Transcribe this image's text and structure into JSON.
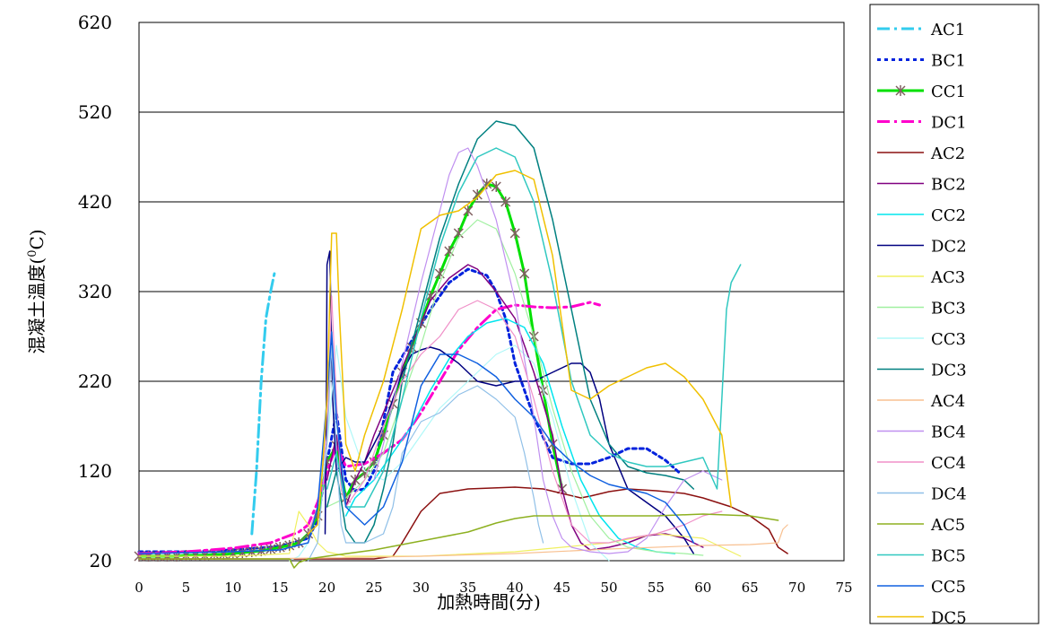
{
  "chart_data": {
    "type": "line",
    "xlabel": "加熱時間(分)",
    "ylabel_main": "混凝土溫度(",
    "ylabel_sup": "0",
    "ylabel_tail": "C)",
    "xlim": [
      0,
      75
    ],
    "ylim": [
      20,
      620
    ],
    "xticks": [
      "0",
      "5",
      "10",
      "15",
      "20",
      "25",
      "30",
      "35",
      "40",
      "45",
      "50",
      "55",
      "60",
      "65",
      "70",
      "75"
    ],
    "yticks": [
      "20",
      "120",
      "220",
      "320",
      "420",
      "520",
      "620"
    ],
    "grid": "horizontal",
    "legend_position": "right",
    "series": [
      {
        "name": "AC1",
        "color": "#33CCEE",
        "style": "dashdot",
        "width": 3,
        "x": [
          12,
          12.5,
          13,
          13.5,
          14,
          14.4
        ],
        "y": [
          50,
          120,
          220,
          290,
          320,
          340
        ]
      },
      {
        "name": "BC1",
        "color": "#0022DD",
        "style": "dot",
        "width": 3,
        "x": [
          0,
          5,
          10,
          15,
          18,
          19,
          20,
          21,
          22,
          23,
          24,
          25,
          27,
          29,
          31,
          33,
          35,
          37,
          38,
          39,
          40,
          42,
          44,
          46,
          48,
          50,
          52,
          54,
          56,
          57.5
        ],
        "y": [
          30,
          30,
          32,
          36,
          45,
          65,
          130,
          185,
          110,
          98,
          100,
          120,
          230,
          265,
          300,
          330,
          345,
          338,
          320,
          290,
          240,
          180,
          135,
          128,
          128,
          135,
          145,
          145,
          132,
          118
        ]
      },
      {
        "name": "CC1",
        "color": "#00E000",
        "style": "solid",
        "width": 3,
        "markers": true,
        "marker_color": "#806060",
        "x": [
          0,
          1,
          2,
          3,
          4,
          5,
          6,
          7,
          8,
          9,
          10,
          11,
          12,
          13,
          14,
          15,
          16,
          17,
          18,
          19,
          20,
          21,
          22,
          23,
          24,
          25,
          26,
          27,
          28,
          29,
          30,
          31,
          32,
          33,
          34,
          35,
          36,
          37,
          38,
          39,
          40,
          41,
          42,
          43,
          44,
          45
        ],
        "y": [
          25,
          25,
          25,
          25,
          25,
          26,
          26,
          26,
          27,
          27,
          28,
          29,
          30,
          31,
          33,
          35,
          37,
          40,
          50,
          70,
          130,
          148,
          90,
          110,
          118,
          130,
          160,
          195,
          230,
          258,
          285,
          315,
          340,
          365,
          385,
          410,
          428,
          440,
          437,
          420,
          385,
          340,
          270,
          210,
          150,
          100
        ]
      },
      {
        "name": "DC1",
        "color": "#FF00CC",
        "style": "dashdot",
        "width": 3,
        "x": [
          0,
          5,
          10,
          14,
          17,
          18,
          19,
          20,
          21,
          22,
          24,
          26,
          28,
          30,
          32,
          34,
          36,
          38,
          40,
          42,
          44,
          46,
          48,
          49
        ],
        "y": [
          28,
          30,
          34,
          40,
          52,
          60,
          85,
          120,
          148,
          125,
          128,
          140,
          155,
          185,
          220,
          255,
          280,
          300,
          305,
          303,
          302,
          303,
          308,
          305
        ]
      },
      {
        "name": "AC2",
        "color": "#8B1010",
        "style": "solid",
        "width": 1.5,
        "x": [
          0,
          10,
          20,
          25,
          27,
          28,
          30,
          32,
          35,
          40,
          43,
          45,
          47,
          48,
          50,
          52,
          55,
          58,
          60,
          63,
          65,
          67,
          68,
          69
        ],
        "y": [
          22,
          22,
          22,
          22,
          25,
          40,
          75,
          95,
          100,
          102,
          100,
          95,
          90,
          92,
          97,
          100,
          98,
          95,
          90,
          80,
          70,
          55,
          35,
          28
        ]
      },
      {
        "name": "BC2",
        "color": "#800080",
        "style": "solid",
        "width": 1.5,
        "x": [
          20,
          21,
          22,
          23,
          24,
          25,
          27,
          29,
          31,
          33,
          35,
          36,
          38,
          40,
          42,
          44,
          45,
          46,
          47,
          48,
          50,
          52,
          54,
          56,
          58,
          60
        ],
        "y": [
          110,
          160,
          80,
          110,
          130,
          160,
          210,
          260,
          310,
          335,
          350,
          345,
          320,
          290,
          230,
          160,
          100,
          60,
          40,
          32,
          35,
          40,
          48,
          50,
          45,
          35
        ]
      },
      {
        "name": "CC2",
        "color": "#00E5EE",
        "style": "solid",
        "width": 1.5,
        "x": [
          22,
          23,
          25,
          27,
          29,
          31,
          33,
          35,
          37,
          39,
          41,
          43,
          45,
          47,
          49,
          51,
          53,
          55,
          57
        ],
        "y": [
          70,
          90,
          110,
          140,
          170,
          210,
          245,
          270,
          285,
          290,
          280,
          240,
          170,
          110,
          70,
          45,
          35,
          30,
          28
        ]
      },
      {
        "name": "DC2",
        "color": "#000080",
        "style": "solid",
        "width": 1.5,
        "x": [
          19.8,
          19.9,
          20,
          20.3,
          20.6,
          21,
          22,
          23,
          24,
          25,
          26,
          27,
          28,
          29,
          30,
          31,
          32,
          34,
          36,
          38,
          40,
          42,
          44,
          46,
          47,
          48,
          49,
          50,
          52,
          54,
          56,
          58,
          59
        ],
        "y": [
          50,
          150,
          350,
          365,
          200,
          120,
          135,
          130,
          130,
          150,
          170,
          200,
          230,
          250,
          255,
          258,
          255,
          240,
          220,
          215,
          220,
          220,
          230,
          240,
          240,
          230,
          200,
          150,
          100,
          85,
          70,
          45,
          28
        ]
      },
      {
        "name": "AC3",
        "color": "#F0F060",
        "style": "solid",
        "width": 1.2,
        "x": [
          0,
          10,
          16,
          16.5,
          17,
          18,
          19,
          20,
          22,
          25,
          30,
          40,
          50,
          55,
          60,
          63,
          64
        ],
        "y": [
          25,
          25,
          28,
          50,
          75,
          60,
          40,
          30,
          25,
          25,
          25,
          30,
          40,
          50,
          45,
          30,
          25
        ]
      },
      {
        "name": "BC3",
        "color": "#A0F0A0",
        "style": "solid",
        "width": 1.2,
        "x": [
          20,
          22,
          24,
          26,
          28,
          30,
          32,
          34,
          36,
          38,
          40,
          42,
          44,
          46,
          48,
          50,
          52,
          55,
          58,
          60
        ],
        "y": [
          80,
          90,
          110,
          140,
          200,
          260,
          330,
          380,
          400,
          390,
          340,
          270,
          190,
          120,
          70,
          45,
          35,
          30,
          28,
          26
        ]
      },
      {
        "name": "CC3",
        "color": "#B0F8F8",
        "style": "solid",
        "width": 1.2,
        "x": [
          16,
          17,
          18,
          19,
          20,
          21,
          22,
          24,
          26,
          28,
          30,
          32,
          34,
          36,
          38,
          40,
          42,
          44,
          46,
          48,
          50
        ],
        "y": [
          20,
          25,
          40,
          80,
          150,
          260,
          180,
          120,
          110,
          130,
          160,
          190,
          210,
          230,
          250,
          260,
          240,
          180,
          100,
          40,
          20
        ]
      },
      {
        "name": "DC3",
        "color": "#008080",
        "style": "solid",
        "width": 1.5,
        "x": [
          20,
          21,
          22,
          23,
          24,
          25,
          26,
          27,
          28,
          30,
          32,
          34,
          36,
          38,
          40,
          42,
          44,
          46,
          48,
          50,
          52,
          54,
          56,
          58,
          59
        ],
        "y": [
          80,
          120,
          55,
          40,
          40,
          60,
          100,
          150,
          220,
          300,
          380,
          440,
          490,
          510,
          505,
          480,
          400,
          300,
          200,
          150,
          125,
          118,
          115,
          110,
          100
        ]
      },
      {
        "name": "AC4",
        "color": "#F8C090",
        "style": "solid",
        "width": 1.2,
        "x": [
          0,
          10,
          20,
          30,
          40,
          50,
          60,
          65,
          68,
          68.5,
          69
        ],
        "y": [
          22,
          22,
          23,
          25,
          28,
          33,
          37,
          38,
          40,
          55,
          60
        ]
      },
      {
        "name": "BC4",
        "color": "#C090F0",
        "style": "solid",
        "width": 1.2,
        "x": [
          25,
          26,
          28,
          30,
          32,
          33,
          34,
          35,
          36,
          38,
          40,
          42,
          43,
          44,
          45,
          46,
          48,
          50,
          52,
          54,
          56,
          58,
          60,
          62
        ],
        "y": [
          110,
          150,
          240,
          330,
          410,
          450,
          475,
          480,
          460,
          400,
          310,
          180,
          110,
          70,
          45,
          35,
          30,
          28,
          30,
          45,
          80,
          110,
          120,
          110
        ]
      },
      {
        "name": "CC4",
        "color": "#F090C8",
        "style": "solid",
        "width": 1.2,
        "x": [
          18,
          19,
          20,
          20.5,
          21,
          21.5,
          22,
          24,
          26,
          28,
          30,
          32,
          34,
          36,
          38,
          40,
          42,
          44,
          46,
          48,
          50,
          52,
          55,
          58,
          60,
          62
        ],
        "y": [
          50,
          80,
          160,
          315,
          200,
          100,
          80,
          110,
          170,
          220,
          250,
          270,
          300,
          310,
          300,
          270,
          200,
          120,
          60,
          40,
          40,
          45,
          50,
          60,
          70,
          75
        ]
      },
      {
        "name": "DC4",
        "color": "#90C0E8",
        "style": "solid",
        "width": 1.2,
        "x": [
          18,
          19,
          20,
          20.5,
          21,
          21.5,
          22,
          24,
          26,
          27,
          28,
          30,
          32,
          34,
          36,
          38,
          40,
          41,
          42,
          42.5,
          43
        ],
        "y": [
          20,
          40,
          150,
          260,
          140,
          60,
          40,
          40,
          50,
          80,
          140,
          175,
          185,
          205,
          215,
          200,
          180,
          140,
          90,
          60,
          40
        ]
      },
      {
        "name": "AC5",
        "color": "#8DB020",
        "style": "solid",
        "width": 1.5,
        "x": [
          0,
          10,
          16,
          16.5,
          17,
          18,
          20,
          25,
          30,
          35,
          38,
          40,
          42,
          45,
          50,
          55,
          60,
          65,
          68
        ],
        "y": [
          22,
          22,
          22,
          12,
          18,
          22,
          25,
          32,
          42,
          52,
          62,
          67,
          70,
          70,
          70,
          70,
          72,
          70,
          65
        ]
      },
      {
        "name": "BC5",
        "color": "#30C8C0",
        "style": "solid",
        "width": 1.5,
        "x": [
          20,
          21,
          22,
          24,
          26,
          28,
          30,
          32,
          34,
          36,
          38,
          40,
          42,
          44,
          46,
          48,
          50,
          52,
          54,
          56,
          58,
          60,
          61.5,
          62,
          62.5,
          63,
          64
        ],
        "y": [
          100,
          140,
          80,
          80,
          120,
          200,
          290,
          370,
          430,
          470,
          480,
          470,
          420,
          330,
          220,
          160,
          140,
          130,
          125,
          125,
          130,
          135,
          100,
          200,
          300,
          330,
          350
        ]
      },
      {
        "name": "CC5",
        "color": "#1060E0",
        "style": "solid",
        "width": 1.5,
        "x": [
          0,
          10,
          15,
          18,
          19,
          20,
          20.5,
          21,
          22,
          24,
          26,
          28,
          30,
          32,
          34,
          36,
          38,
          40,
          42,
          44,
          46,
          48,
          50,
          52,
          54,
          56,
          58,
          59
        ],
        "y": [
          28,
          30,
          32,
          40,
          80,
          200,
          275,
          180,
          80,
          60,
          80,
          130,
          215,
          250,
          250,
          240,
          225,
          200,
          180,
          150,
          130,
          115,
          105,
          100,
          95,
          85,
          60,
          40
        ]
      },
      {
        "name": "DC5",
        "color": "#F0C000",
        "style": "solid",
        "width": 1.5,
        "x": [
          18,
          19,
          19.5,
          20,
          20.5,
          21,
          21.3,
          22,
          23,
          24,
          26,
          28,
          30,
          32,
          34,
          36,
          38,
          40,
          42,
          44,
          46,
          48,
          50,
          52,
          54,
          56,
          58,
          60,
          62,
          63
        ],
        "y": [
          50,
          60,
          120,
          200,
          385,
          385,
          300,
          150,
          120,
          160,
          220,
          300,
          390,
          405,
          410,
          425,
          450,
          455,
          445,
          360,
          210,
          200,
          215,
          225,
          235,
          240,
          225,
          200,
          160,
          80
        ]
      }
    ]
  }
}
